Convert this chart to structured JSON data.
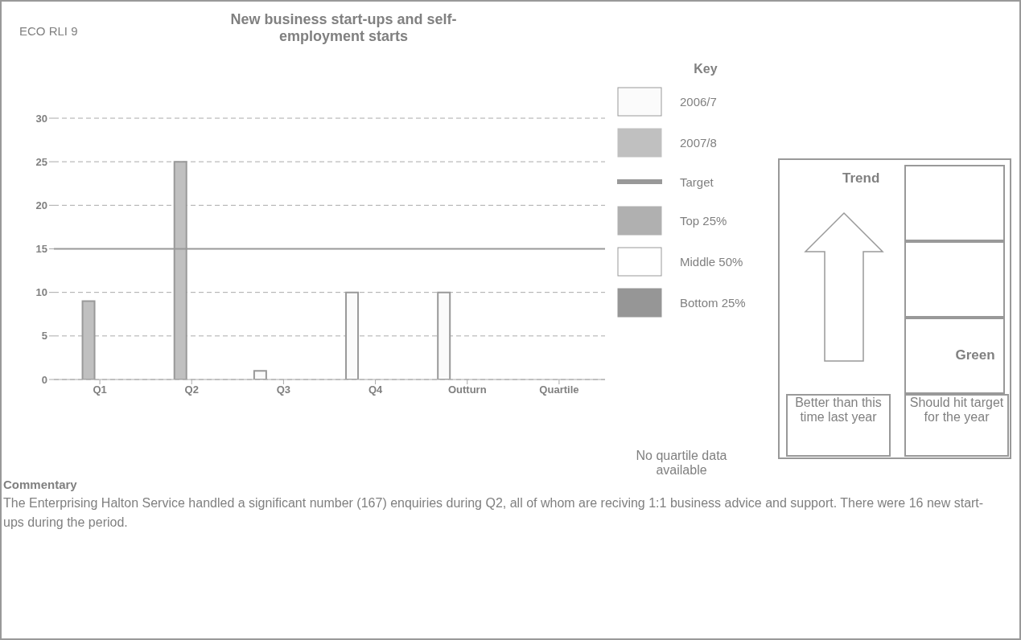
{
  "chart_data": {
    "type": "bar",
    "title": "New business start-ups and self-employment starts",
    "legend_title": "Key",
    "categories": [
      "Q1",
      "Q2",
      "Q3",
      "Q4",
      "Outturn",
      "Quartile"
    ],
    "series": [
      {
        "name": "2006/7",
        "color": "#fbfbfb",
        "values": [
          null,
          null,
          1,
          10,
          10,
          null
        ]
      },
      {
        "name": "2007/8",
        "color": "#c0c0c0",
        "values": [
          9,
          25,
          null,
          null,
          null,
          null
        ]
      },
      {
        "name": "Top 25%",
        "color": "#b0b0b0",
        "values": [
          null,
          null,
          null,
          null,
          null,
          null
        ]
      },
      {
        "name": "Middle 50%",
        "color": "#ffffff",
        "values": [
          null,
          null,
          null,
          null,
          null,
          null
        ]
      },
      {
        "name": "Bottom 25%",
        "color": "#969696",
        "values": [
          null,
          null,
          null,
          null,
          null,
          null
        ]
      }
    ],
    "ylim": [
      0,
      30
    ],
    "yticks": [
      0,
      5,
      10,
      15,
      20,
      25,
      30
    ],
    "grid": "y",
    "legend": "right",
    "ref_lines": [
      {
        "axis": "y",
        "value": 15,
        "label": "Target",
        "color": "#999999",
        "line_style": "solid"
      }
    ],
    "annotations": [
      "ECO RLI 9",
      "No quartile data available",
      "Trend",
      "Green",
      "Better than this time last year",
      "Should hit target for the year",
      "Commentary",
      "The Enterprising Halton Service handled a significant number (167) enquiries during Q2, all of whom are reciving 1:1 business advice and support. There were 16 new start-ups during the period."
    ]
  }
}
